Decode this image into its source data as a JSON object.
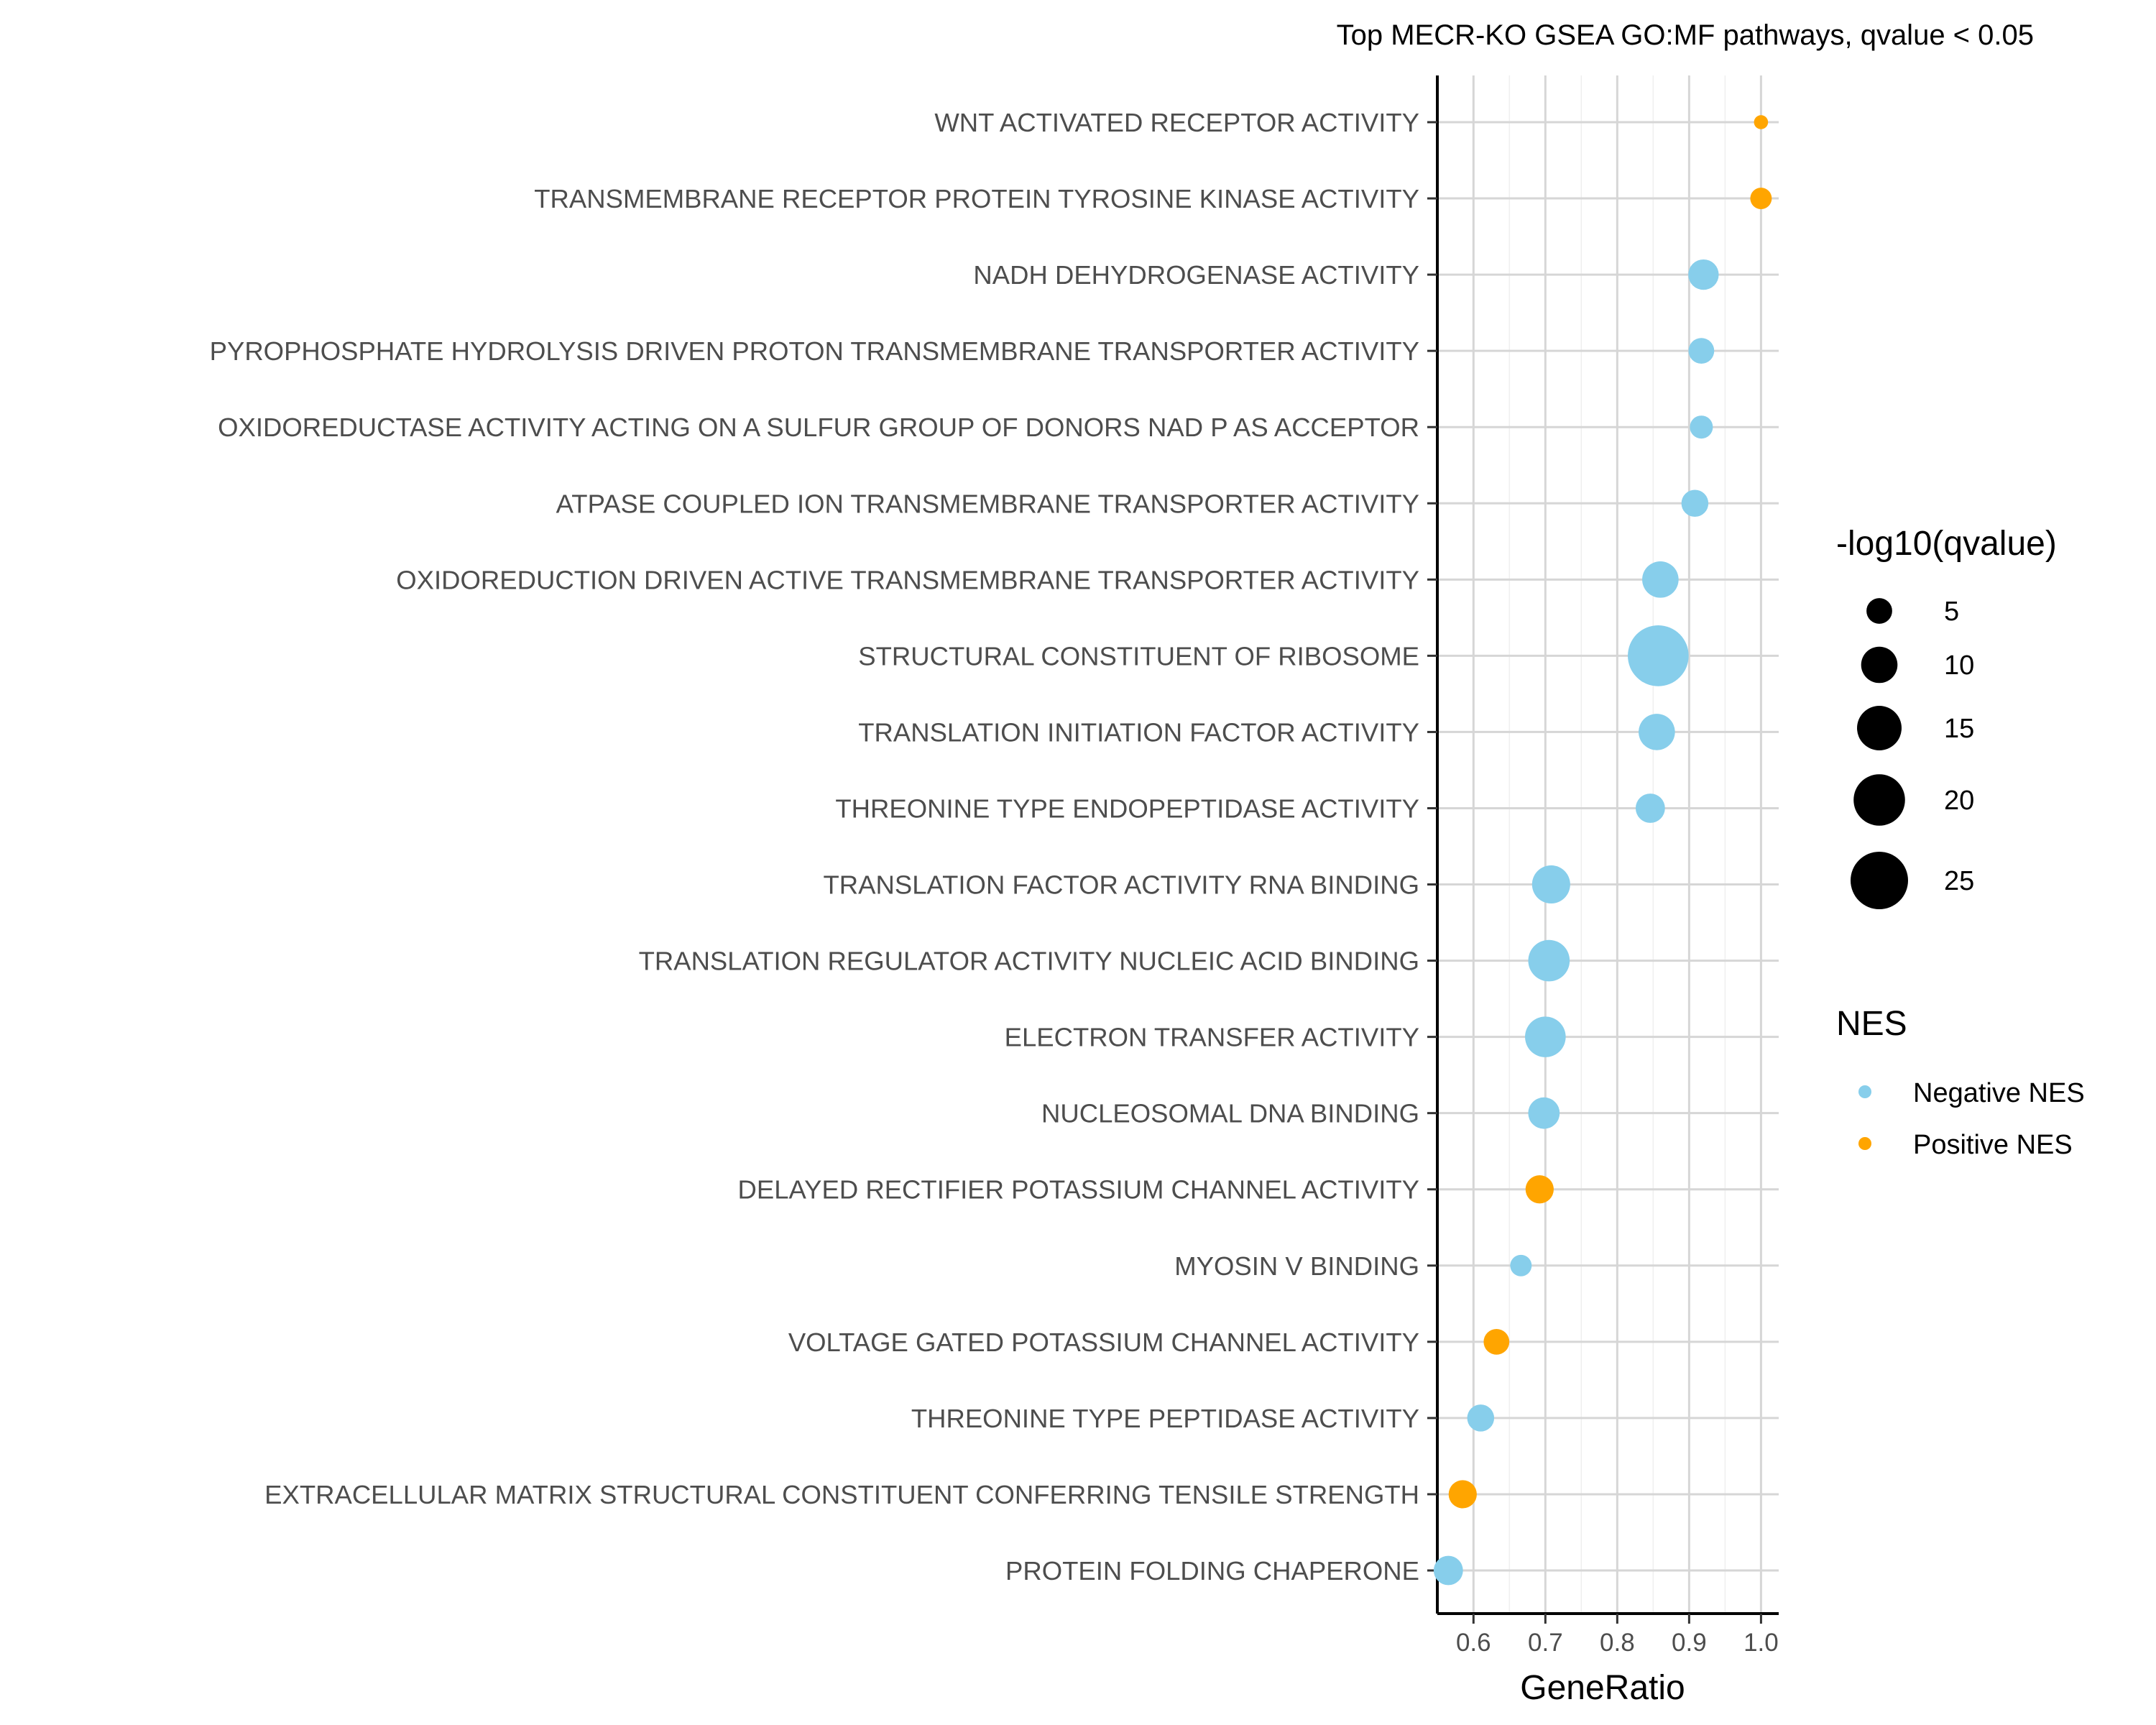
{
  "chart_data": {
    "type": "scatter",
    "title": "Top MECR-KO GSEA GO:MF pathways, qvalue < 0.05",
    "xlabel": "GeneRatio",
    "ylabel": "",
    "xlim": [
      0.55,
      1.02
    ],
    "x_ticks": [
      0.6,
      0.7,
      0.8,
      0.9,
      1.0
    ],
    "x_tick_labels": [
      "0.6",
      "0.7",
      "0.8",
      "0.9",
      "1.0"
    ],
    "grid": true,
    "legend_position": "right",
    "colors": {
      "Negative NES": "#87ceeb",
      "Positive NES": "#ffa500"
    },
    "size_legend": {
      "title": "-log10(qvalue)",
      "values": [
        5,
        10,
        15,
        20,
        25
      ],
      "labels": [
        "5",
        "10",
        "15",
        "20",
        "25"
      ]
    },
    "color_legend": {
      "title": "NES",
      "entries": [
        "Negative NES",
        "Positive NES"
      ]
    },
    "points": [
      {
        "pathway": "WNT ACTIVATED RECEPTOR ACTIVITY",
        "gene_ratio": 1.0,
        "neg_log10_q": 1.5,
        "nes": "Positive NES"
      },
      {
        "pathway": "TRANSMEMBRANE RECEPTOR PROTEIN TYROSINE KINASE ACTIVITY",
        "gene_ratio": 1.0,
        "neg_log10_q": 3.5,
        "nes": "Positive NES"
      },
      {
        "pathway": "NADH DEHYDROGENASE ACTIVITY",
        "gene_ratio": 0.92,
        "neg_log10_q": 7,
        "nes": "Negative NES"
      },
      {
        "pathway": "PYROPHOSPHATE HYDROLYSIS DRIVEN PROTON TRANSMEMBRANE TRANSPORTER ACTIVITY",
        "gene_ratio": 0.917,
        "neg_log10_q": 5,
        "nes": "Negative NES"
      },
      {
        "pathway": "OXIDOREDUCTASE ACTIVITY ACTING ON A SULFUR GROUP OF DONORS NAD P AS ACCEPTOR",
        "gene_ratio": 0.917,
        "neg_log10_q": 4,
        "nes": "Negative NES"
      },
      {
        "pathway": "ATPASE COUPLED ION TRANSMEMBRANE TRANSPORTER ACTIVITY",
        "gene_ratio": 0.908,
        "neg_log10_q": 5.5,
        "nes": "Negative NES"
      },
      {
        "pathway": "OXIDOREDUCTION DRIVEN ACTIVE TRANSMEMBRANE TRANSPORTER ACTIVITY",
        "gene_ratio": 0.86,
        "neg_log10_q": 10,
        "nes": "Negative NES"
      },
      {
        "pathway": "STRUCTURAL CONSTITUENT OF RIBOSOME",
        "gene_ratio": 0.857,
        "neg_log10_q": 28,
        "nes": "Negative NES"
      },
      {
        "pathway": "TRANSLATION INITIATION FACTOR ACTIVITY",
        "gene_ratio": 0.855,
        "neg_log10_q": 10,
        "nes": "Negative NES"
      },
      {
        "pathway": "THREONINE TYPE ENDOPEPTIDASE ACTIVITY",
        "gene_ratio": 0.846,
        "neg_log10_q": 6.5,
        "nes": "Negative NES"
      },
      {
        "pathway": "TRANSLATION FACTOR ACTIVITY RNA BINDING",
        "gene_ratio": 0.708,
        "neg_log10_q": 11,
        "nes": "Negative NES"
      },
      {
        "pathway": "TRANSLATION REGULATOR ACTIVITY NUCLEIC ACID BINDING",
        "gene_ratio": 0.705,
        "neg_log10_q": 13,
        "nes": "Negative NES"
      },
      {
        "pathway": "ELECTRON TRANSFER ACTIVITY",
        "gene_ratio": 0.7,
        "neg_log10_q": 12.5,
        "nes": "Negative NES"
      },
      {
        "pathway": "NUCLEOSOMAL DNA BINDING",
        "gene_ratio": 0.698,
        "neg_log10_q": 7.5,
        "nes": "Negative NES"
      },
      {
        "pathway": "DELAYED RECTIFIER POTASSIUM CHANNEL ACTIVITY",
        "gene_ratio": 0.692,
        "neg_log10_q": 6,
        "nes": "Positive NES"
      },
      {
        "pathway": "MYOSIN V BINDING",
        "gene_ratio": 0.666,
        "neg_log10_q": 3.5,
        "nes": "Negative NES"
      },
      {
        "pathway": "VOLTAGE GATED POTASSIUM CHANNEL ACTIVITY",
        "gene_ratio": 0.632,
        "neg_log10_q": 5,
        "nes": "Positive NES"
      },
      {
        "pathway": "THREONINE TYPE PEPTIDASE ACTIVITY",
        "gene_ratio": 0.61,
        "neg_log10_q": 5.5,
        "nes": "Negative NES"
      },
      {
        "pathway": "EXTRACELLULAR MATRIX STRUCTURAL CONSTITUENT CONFERRING TENSILE STRENGTH",
        "gene_ratio": 0.585,
        "neg_log10_q": 6,
        "nes": "Positive NES"
      },
      {
        "pathway": "PROTEIN FOLDING CHAPERONE",
        "gene_ratio": 0.565,
        "neg_log10_q": 6.5,
        "nes": "Negative NES"
      }
    ]
  }
}
